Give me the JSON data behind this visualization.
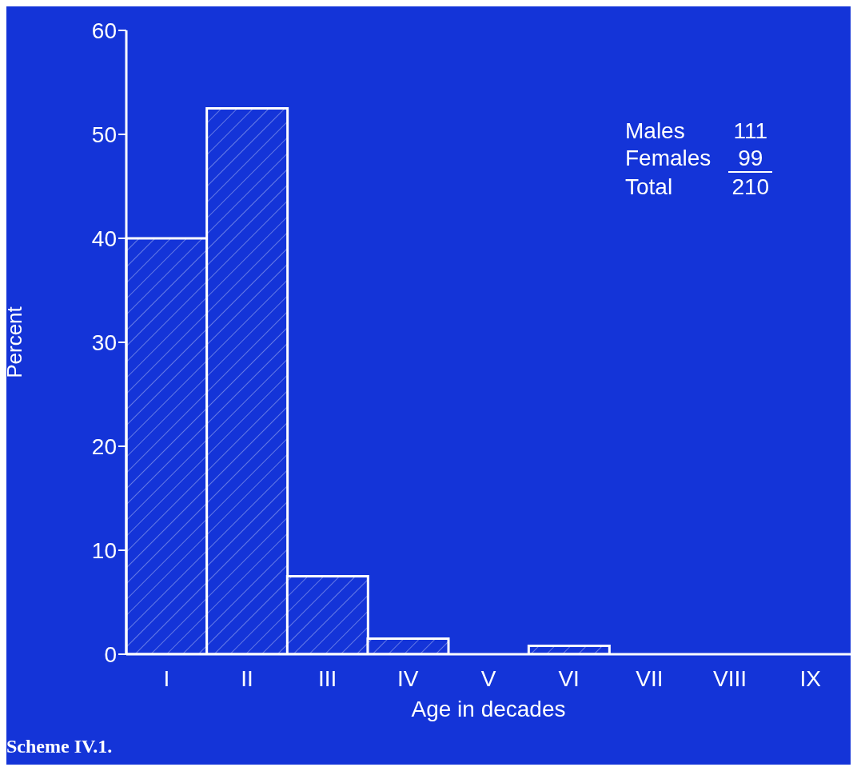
{
  "chart_data": {
    "type": "bar",
    "xlabel": "Age in decades",
    "ylabel": "Percent",
    "categories": [
      "I",
      "II",
      "III",
      "IV",
      "V",
      "VI",
      "VII",
      "VIII",
      "IX"
    ],
    "values": [
      40,
      52.5,
      7.5,
      1.5,
      0,
      0.8,
      0,
      0,
      0
    ],
    "color": "#ffffff",
    "ylim": [
      0,
      60
    ],
    "yticks": [
      0,
      10,
      20,
      30,
      40,
      50,
      60
    ],
    "annotations": [
      "Males",
      "111",
      "Females",
      "99",
      "Total",
      "210",
      "Scheme IV.1."
    ]
  }
}
